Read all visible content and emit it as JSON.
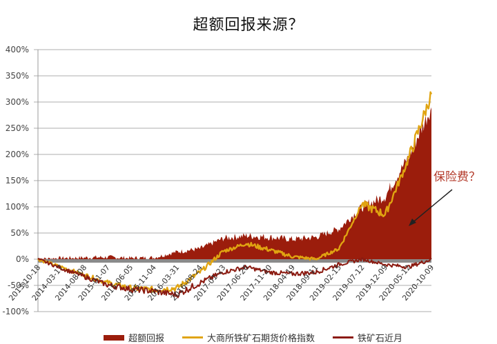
{
  "title": "超额回报来源？",
  "annotation": {
    "text": "保险费？"
  },
  "legend": [
    {
      "label": "超额回报",
      "color": "#9b1d0c",
      "kind": "area"
    },
    {
      "label": "大商所铁矿石期货价格指数",
      "color": "#e0a411",
      "kind": "line"
    },
    {
      "label": "铁矿石近月",
      "color": "#8b1a10",
      "kind": "line"
    }
  ],
  "chart_data": {
    "type": "area",
    "title": "超额回报来源？",
    "xlabel": "",
    "ylabel": "",
    "ylim": [
      -100,
      400
    ],
    "yticks": [
      "400%",
      "350%",
      "300%",
      "250%",
      "200%",
      "150%",
      "100%",
      "50%",
      "0%",
      "-50%",
      "-100%"
    ],
    "grid": true,
    "legend_position": "bottom",
    "categories": [
      "2013-10-18",
      "2014-03-17",
      "2014-08-08",
      "2015-01-07",
      "2015-06-05",
      "2015-11-04",
      "2016-03-31",
      "2016-08-24",
      "2017-01-23",
      "2017-06-26",
      "2017-11-20",
      "2018-04-19",
      "2018-09-11",
      "2019-02-15",
      "2019-07-12",
      "2019-12-09",
      "2020-05-12",
      "2020-10-09"
    ],
    "series": [
      {
        "name": "超额回报",
        "type": "area",
        "color": "#9b1d0c",
        "values": [
          0,
          2,
          3,
          4,
          2,
          3,
          14,
          20,
          40,
          45,
          42,
          38,
          42,
          58,
          100,
          120,
          195,
          290
        ]
      },
      {
        "name": "大商所铁矿石期货价格指数",
        "type": "line",
        "color": "#e0a411",
        "values": [
          0,
          -15,
          -30,
          -45,
          -55,
          -58,
          -55,
          -25,
          15,
          30,
          18,
          5,
          0,
          20,
          105,
          85,
          190,
          315
        ]
      },
      {
        "name": "铁矿石近月",
        "type": "line",
        "color": "#8b1a10",
        "values": [
          0,
          -17,
          -33,
          -49,
          -57,
          -61,
          -68,
          -45,
          -25,
          -15,
          -25,
          -28,
          -25,
          -10,
          0,
          -10,
          -15,
          0
        ]
      }
    ],
    "annotations": [
      {
        "text": "保险费？",
        "arrow_to": "2020-10-09 area",
        "color": "#b33a2a"
      }
    ]
  }
}
